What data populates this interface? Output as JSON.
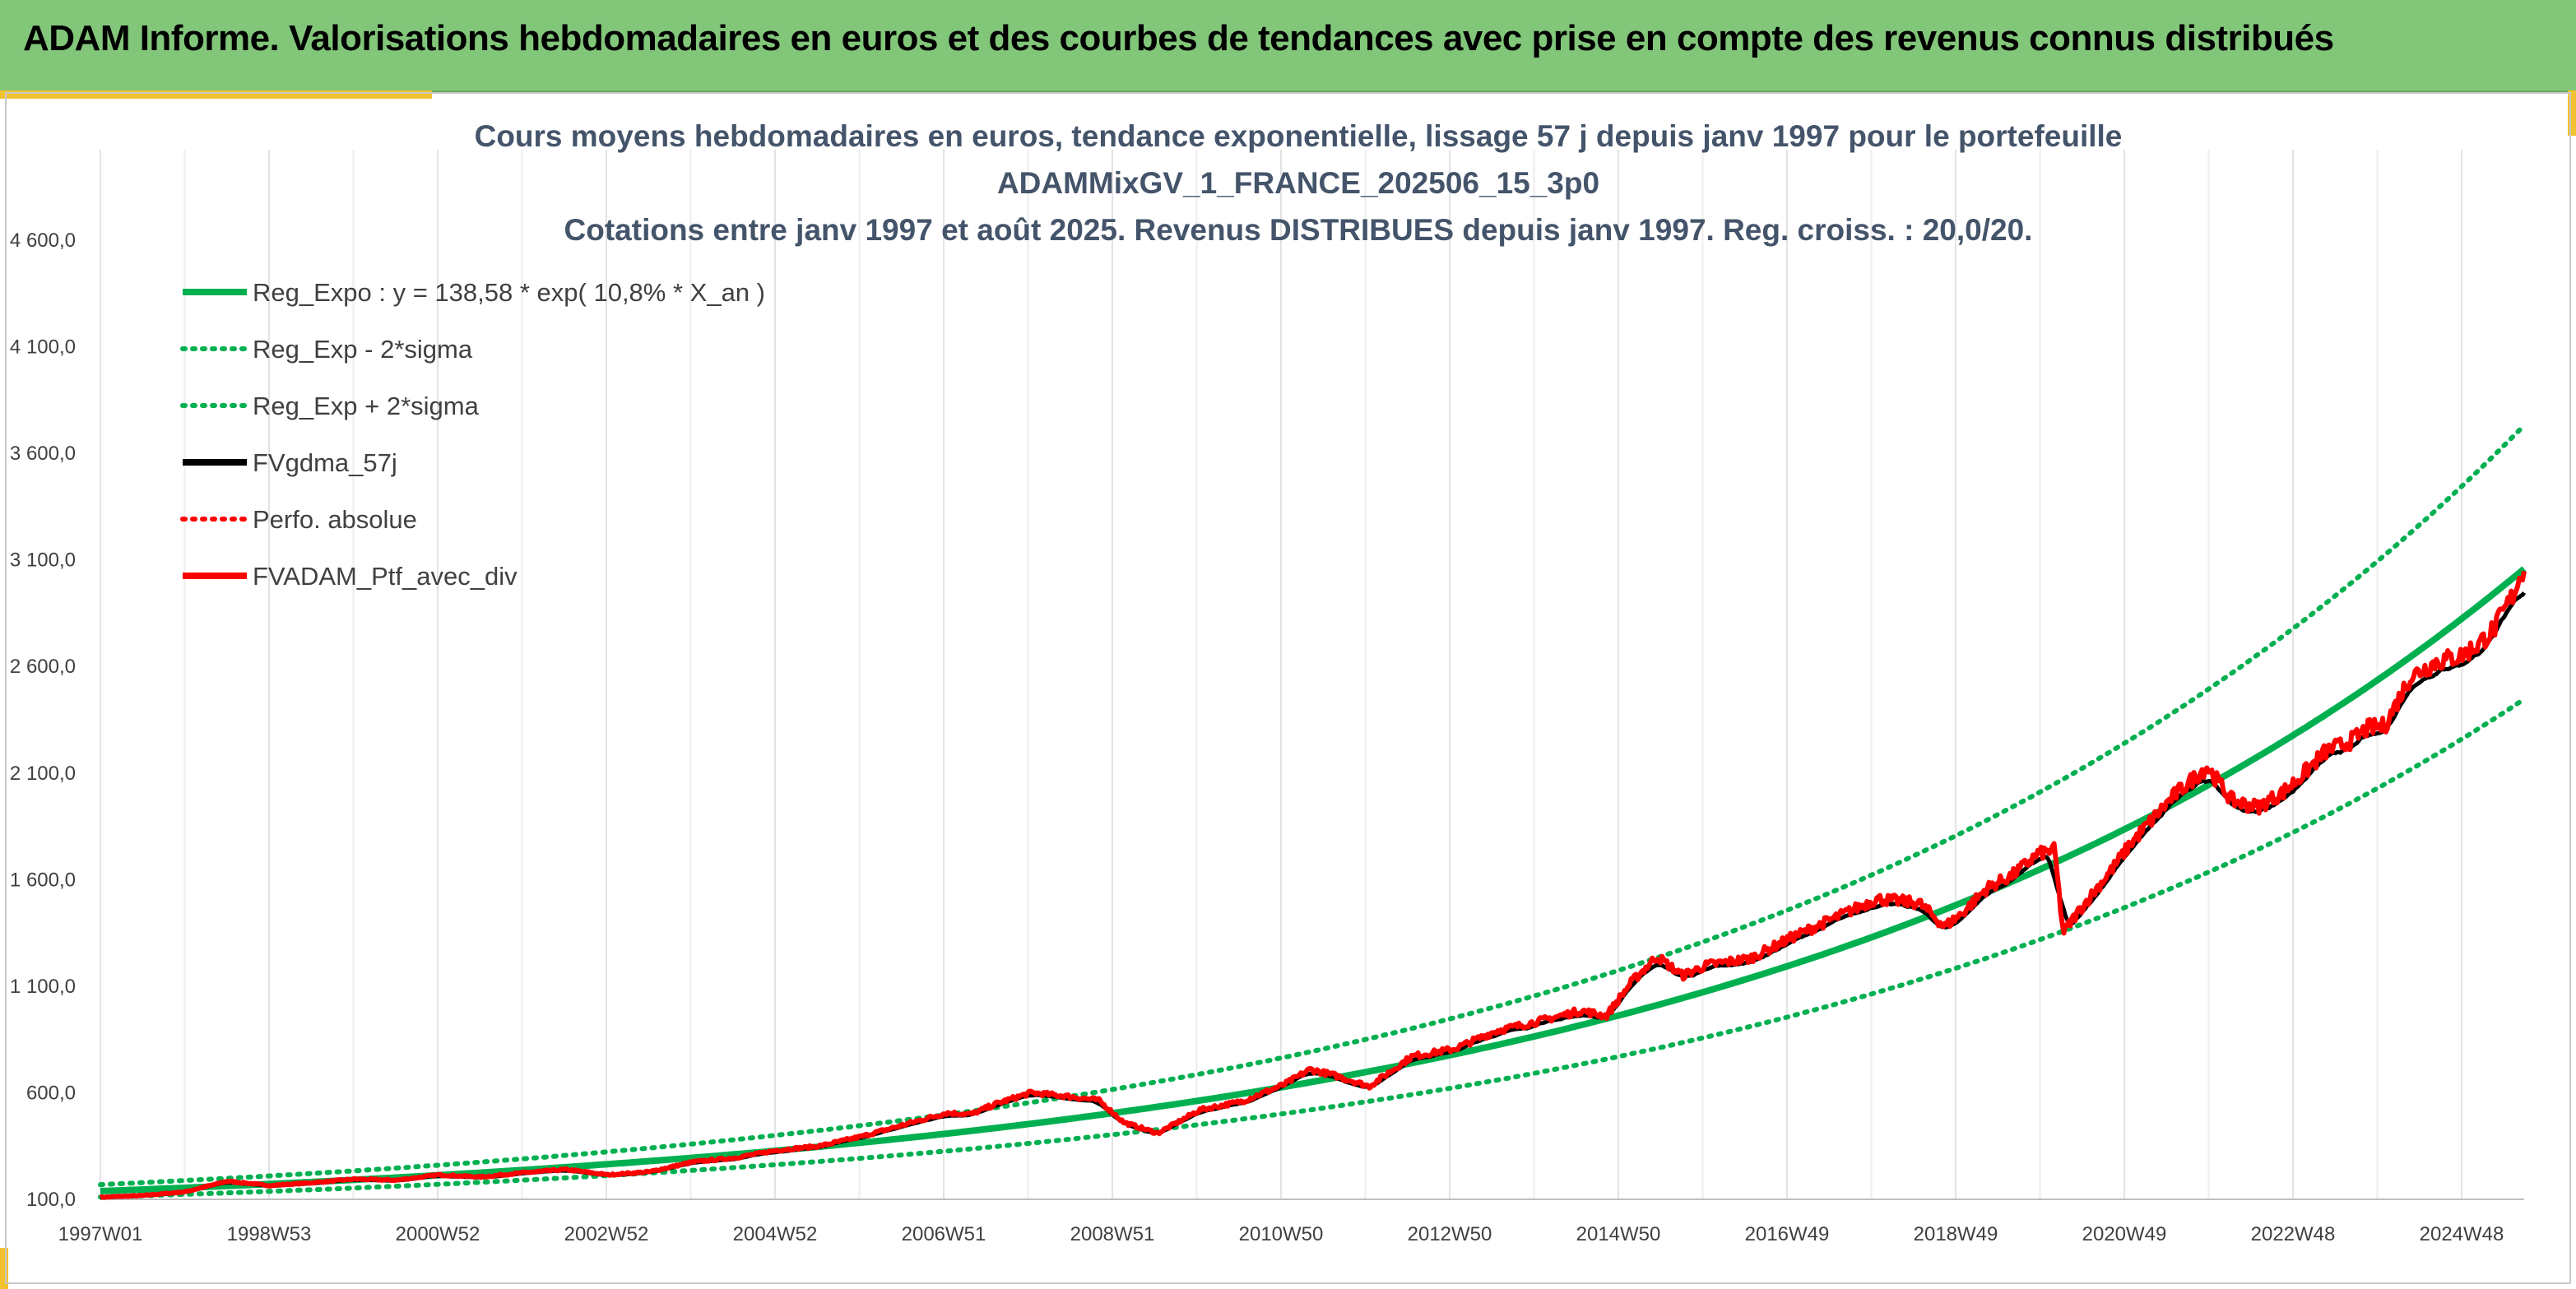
{
  "header": {
    "title": "ADAM Informe. Valorisations hebdomadaires en euros et des courbes de tendances avec prise en compte des revenus connus distribués"
  },
  "colors": {
    "header_bg": "#82c67a",
    "accent": "#f2c12e",
    "trend": "#00b050",
    "gdma": "#000000",
    "portfolio": "#ff0000",
    "title_text": "#44546a"
  },
  "chart_data": {
    "type": "line",
    "title_lines": [
      "Cours moyens hebdomadaires en euros, tendance exponentielle, lissage 57 j depuis janv 1997 pour le portefeuille",
      "ADAMMixGV_1_FRANCE_202506_15_3p0",
      "Cotations entre janv 1997 et août 2025. Revenus DISTRIBUES depuis janv 1997. Reg. croiss. : 20,0/20."
    ],
    "x_tick_labels": [
      "1997W01",
      "1998W53",
      "2000W52",
      "2002W52",
      "2004W52",
      "2006W51",
      "2008W51",
      "2010W50",
      "2012W50",
      "2014W50",
      "2016W49",
      "2018W49",
      "2020W49",
      "2022W48",
      "2024W48"
    ],
    "y_tick_labels": [
      "100,0",
      "600,0",
      "1 100,0",
      "1 600,0",
      "2 100,0",
      "2 600,0",
      "3 100,0",
      "3 600,0",
      "4 100,0",
      "4 600,0"
    ],
    "x_range": [
      1997.0,
      2025.65
    ],
    "ylim": [
      100,
      4600
    ],
    "grid": "vertical",
    "legend_position": "top-left",
    "trend": {
      "a": 138.58,
      "r": 0.108,
      "start": 1997.0
    },
    "band_factors": {
      "lower": 0.8,
      "upper": 1.22
    },
    "series": [
      {
        "name": "Reg_Expo : y = 138,58 * exp( 10,8% *  X_an )",
        "style": "solid",
        "color": "#00b050",
        "role": "trend"
      },
      {
        "name": "Reg_Exp - 2*sigma",
        "style": "dotted",
        "color": "#00b050",
        "role": "lower"
      },
      {
        "name": "Reg_Exp + 2*sigma",
        "style": "dotted",
        "color": "#00b050",
        "role": "upper"
      },
      {
        "name": "FVgdma_57j",
        "style": "solid",
        "color": "#000000",
        "role": "gdma"
      },
      {
        "name": "Perfo. absolue",
        "style": "dotted",
        "color": "#ff0000",
        "role": "perf"
      },
      {
        "name": "FVADAM_Ptf_avec_div",
        "style": "solid",
        "color": "#ff0000",
        "role": "portfolio",
        "x": [
          1997.0,
          1997.5,
          1998.0,
          1998.5,
          1999.0,
          1999.5,
          2000.0,
          2000.5,
          2001.0,
          2001.5,
          2002.0,
          2002.5,
          2003.0,
          2003.5,
          2004.0,
          2004.5,
          2005.0,
          2005.5,
          2006.0,
          2006.5,
          2007.0,
          2007.3,
          2007.6,
          2008.0,
          2008.4,
          2008.8,
          2009.1,
          2009.5,
          2010.0,
          2010.5,
          2011.0,
          2011.3,
          2011.6,
          2012.0,
          2012.5,
          2013.0,
          2013.5,
          2014.0,
          2014.5,
          2014.8,
          2015.1,
          2015.4,
          2015.7,
          2016.0,
          2016.5,
          2017.0,
          2017.5,
          2018.0,
          2018.5,
          2018.8,
          2019.0,
          2019.3,
          2019.6,
          2019.9,
          2020.1,
          2020.2,
          2020.4,
          2020.8,
          2021.0,
          2021.5,
          2021.9,
          2022.2,
          2022.5,
          2022.8,
          2023.0,
          2023.3,
          2023.6,
          2023.8,
          2024.0,
          2024.3,
          2024.6,
          2024.9,
          2025.1,
          2025.3,
          2025.5,
          2025.65
        ],
        "y": [
          110,
          118,
          135,
          185,
          165,
          178,
          195,
          190,
          215,
          205,
          225,
          240,
          215,
          230,
          275,
          295,
          330,
          350,
          395,
          450,
          505,
          500,
          550,
          600,
          585,
          565,
          460,
          410,
          520,
          560,
          640,
          710,
          680,
          630,
          770,
          805,
          890,
          935,
          985,
          960,
          1120,
          1240,
          1150,
          1200,
          1230,
          1330,
          1420,
          1510,
          1490,
          1380,
          1440,
          1560,
          1620,
          1720,
          1740,
          1350,
          1460,
          1660,
          1770,
          1990,
          2130,
          1970,
          1940,
          2010,
          2080,
          2200,
          2250,
          2310,
          2320,
          2550,
          2620,
          2650,
          2700,
          2780,
          2920,
          3070
        ]
      }
    ]
  }
}
